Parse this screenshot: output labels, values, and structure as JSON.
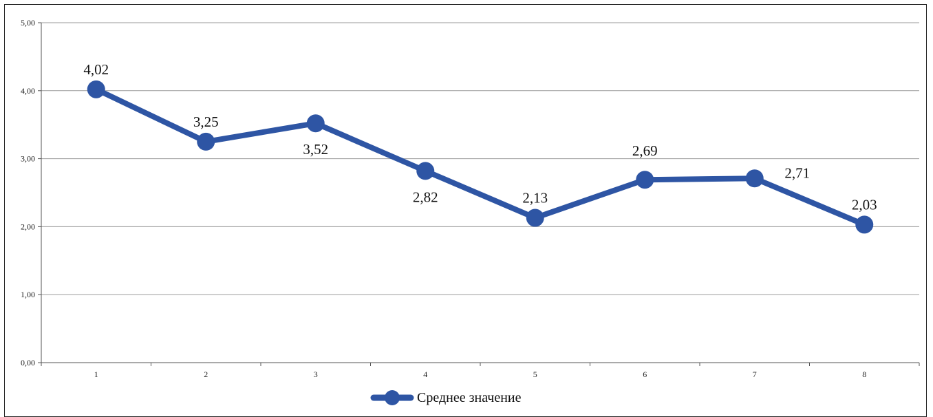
{
  "chart_data": {
    "type": "line",
    "categories": [
      "1",
      "2",
      "3",
      "4",
      "5",
      "6",
      "7",
      "8"
    ],
    "series": [
      {
        "name": "Среднее значение",
        "values": [
          4.02,
          3.25,
          3.52,
          2.82,
          2.13,
          2.69,
          2.71,
          2.03
        ],
        "labels": [
          "4,02",
          "3,25",
          "3,52",
          "2,82",
          "2,13",
          "2,69",
          "2,71",
          "2,03"
        ],
        "color": "#2E55A4"
      }
    ],
    "y_ticks": [
      "0,00",
      "1,00",
      "2,00",
      "3,00",
      "4,00",
      "5,00"
    ],
    "ylim": [
      0,
      5
    ],
    "grid": true,
    "legend_position": "bottom",
    "title": "",
    "xlabel": "",
    "ylabel": ""
  }
}
